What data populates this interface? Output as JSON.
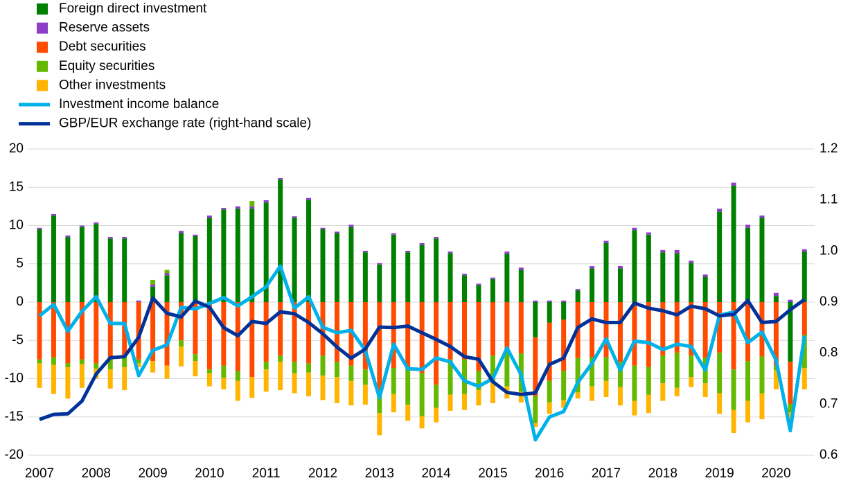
{
  "chart_data": {
    "type": "bar",
    "categories": [
      "2007",
      null,
      null,
      null,
      "2008",
      null,
      null,
      null,
      "2009",
      null,
      null,
      null,
      "2010",
      null,
      null,
      null,
      "2011",
      null,
      null,
      null,
      "2012",
      null,
      null,
      null,
      "2013",
      null,
      null,
      null,
      "2014",
      null,
      null,
      null,
      "2015",
      null,
      null,
      null,
      "2016",
      null,
      null,
      null,
      "2017",
      null,
      null,
      null,
      "2018",
      null,
      null,
      null,
      "2019",
      null,
      null,
      null,
      "2020",
      null,
      null
    ],
    "ylim": [
      -20,
      20
    ],
    "yticks": [
      -20,
      -15,
      -10,
      -5,
      0,
      5,
      10,
      15,
      20
    ],
    "y2lim": [
      0.6,
      1.2
    ],
    "y2ticks": [
      0.6,
      0.7,
      0.8,
      0.9,
      {
        "value": 1.0,
        "label": "1.0"
      },
      1.1,
      1.2
    ],
    "grid": true,
    "stacked": true,
    "legend": "top-left",
    "series": [
      {
        "name": "Foreign direct investment",
        "color": "#008000",
        "values": [
          9.5,
          11.3,
          8.5,
          9.8,
          10.2,
          8.3,
          8.3,
          0,
          2,
          3.5,
          9,
          8.6,
          11,
          12.1,
          12.2,
          12.2,
          13,
          16,
          11,
          13.3,
          9.5,
          9,
          9.8,
          6.5,
          4.9,
          8.8,
          6.5,
          7.5,
          8.3,
          6.4,
          3.5,
          2.2,
          3,
          6.3,
          4.2,
          -4.6,
          -2.7,
          -2.3,
          1.5,
          4.4,
          7.7,
          4.4,
          9.4,
          8.8,
          6.5,
          6.4,
          5.1,
          3.3,
          11.8,
          15.2,
          9.7,
          11,
          0.8,
          -7.8,
          6.6
        ]
      },
      {
        "name": "Reserve assets",
        "color": "#8b3fc7",
        "values": [
          0.2,
          0.2,
          0.2,
          0.2,
          0.2,
          0.2,
          0.2,
          0.2,
          0.3,
          0.3,
          0.3,
          0.2,
          0.3,
          0.2,
          0.3,
          0.3,
          0.3,
          0.2,
          0.2,
          0.3,
          0.2,
          0.2,
          0.3,
          0.2,
          0.2,
          0.2,
          0.2,
          0.2,
          0.2,
          0.2,
          0.2,
          0.2,
          0.2,
          0.3,
          0.3,
          0.2,
          0.2,
          0.2,
          0.2,
          0.3,
          0.3,
          0.3,
          0.3,
          0.3,
          0.3,
          0.4,
          0.3,
          0.3,
          0.4,
          0.4,
          0.4,
          0.3,
          0.4,
          0.3,
          0.3
        ]
      },
      {
        "name": "Debt securities",
        "color": "#ff4b00",
        "values": [
          -7.5,
          -7.2,
          -8,
          -7.5,
          -8,
          -7.5,
          -7,
          -7.5,
          -7.7,
          -8.3,
          -5,
          -6.8,
          -8.8,
          -8.3,
          -9,
          -9.8,
          -7.8,
          -7,
          -7.8,
          -8,
          -7,
          -7.8,
          -8.3,
          -8.8,
          -11.5,
          -8.6,
          -8.6,
          -9.3,
          -10.8,
          -7.5,
          -7.5,
          -9,
          -7,
          -6,
          -6.7,
          -7.7,
          -7.6,
          -6.7,
          -7.3,
          -7.2,
          -7.2,
          -7.8,
          -8.3,
          -8.5,
          -7,
          -6.6,
          -7,
          -7.3,
          -6.6,
          -8.8,
          -7.7,
          -7.1,
          -8.3,
          -5.5,
          -4.3
        ]
      },
      {
        "name": "Equity securities",
        "color": "#65b800",
        "values": [
          -0.5,
          -1,
          -0.5,
          -0.6,
          -0.7,
          -1.3,
          -1.5,
          -0.5,
          0.6,
          0.4,
          -0.8,
          -0.9,
          -0.5,
          -1.6,
          -1.3,
          0.7,
          -1,
          -0.8,
          -1.5,
          -1.2,
          -2.6,
          -2,
          -2,
          -2,
          -3,
          -3.4,
          -4.8,
          -5.6,
          -3,
          -4.6,
          -4.5,
          -2.5,
          -3.5,
          -5,
          -5,
          -3.5,
          -2.8,
          -3.8,
          -4.5,
          -3.8,
          -3.1,
          -3.3,
          -4.6,
          -3.6,
          -3.6,
          -4.6,
          -2.8,
          -3.3,
          -5.3,
          -5.3,
          -5.2,
          -4.8,
          -0.6,
          -1.1,
          -4.3
        ]
      },
      {
        "name": "Other investments",
        "color": "#ffb400",
        "values": [
          -3.2,
          -3.8,
          -4.1,
          -3.1,
          -1.3,
          -2.5,
          -3,
          -0.5,
          -1.5,
          -1.7,
          -2.6,
          -2,
          -1.7,
          -1.5,
          -2.6,
          -2.7,
          -2.9,
          -3.7,
          -2.6,
          -3.1,
          -3.2,
          -3.4,
          -3.2,
          -2.6,
          -2.9,
          -2.4,
          -2.1,
          -1.6,
          -1.9,
          -2.1,
          -2.1,
          -2,
          -2.7,
          -1.6,
          -1.4,
          -0.5,
          -1.5,
          -1,
          -0.8,
          -1.9,
          -2.1,
          -2.4,
          -1.9,
          -2.4,
          -2.3,
          -1.1,
          -1.3,
          -1.8,
          -2.7,
          -3,
          -2.8,
          -3.4,
          -2.5,
          -2.1,
          -2.8
        ]
      },
      {
        "name": "Investment income balance",
        "color": "#00b1ea",
        "type": "line",
        "values": [
          -1.8,
          -0.3,
          -3.8,
          -1.2,
          0.7,
          -2.8,
          -2.8,
          -9.6,
          -6.3,
          -5.6,
          -0.7,
          -0.9,
          -0.2,
          0.6,
          -0.5,
          0.7,
          2,
          4.7,
          -0.8,
          0.7,
          -3.3,
          -4,
          -3.7,
          -6.3,
          -12.5,
          -5.5,
          -8.7,
          -8.8,
          -7.3,
          -7.8,
          -10.3,
          -11,
          -10,
          -6,
          -9.5,
          -18,
          -15,
          -14.3,
          -10.5,
          -8,
          -4.8,
          -8.9,
          -5.1,
          -5.3,
          -6.2,
          -5.5,
          -5.8,
          -8.9,
          -1.7,
          -1.3,
          -5.3,
          -3.9,
          -7.6,
          -16.8,
          -4.4
        ]
      },
      {
        "name": "GBP/EUR exchange rate (right-hand scale)",
        "color": "#003299",
        "type": "line",
        "axis": "y2",
        "values": [
          0.67,
          0.68,
          0.681,
          0.706,
          0.759,
          0.791,
          0.793,
          0.831,
          0.908,
          0.878,
          0.871,
          0.902,
          0.89,
          0.85,
          0.834,
          0.862,
          0.858,
          0.881,
          0.877,
          0.86,
          0.838,
          0.812,
          0.79,
          0.808,
          0.851,
          0.85,
          0.853,
          0.84,
          0.827,
          0.813,
          0.793,
          0.788,
          0.744,
          0.723,
          0.719,
          0.722,
          0.778,
          0.79,
          0.85,
          0.867,
          0.86,
          0.86,
          0.898,
          0.888,
          0.883,
          0.875,
          0.892,
          0.887,
          0.873,
          0.876,
          0.903,
          0.86,
          0.862,
          0.885,
          0.905
        ]
      }
    ]
  }
}
